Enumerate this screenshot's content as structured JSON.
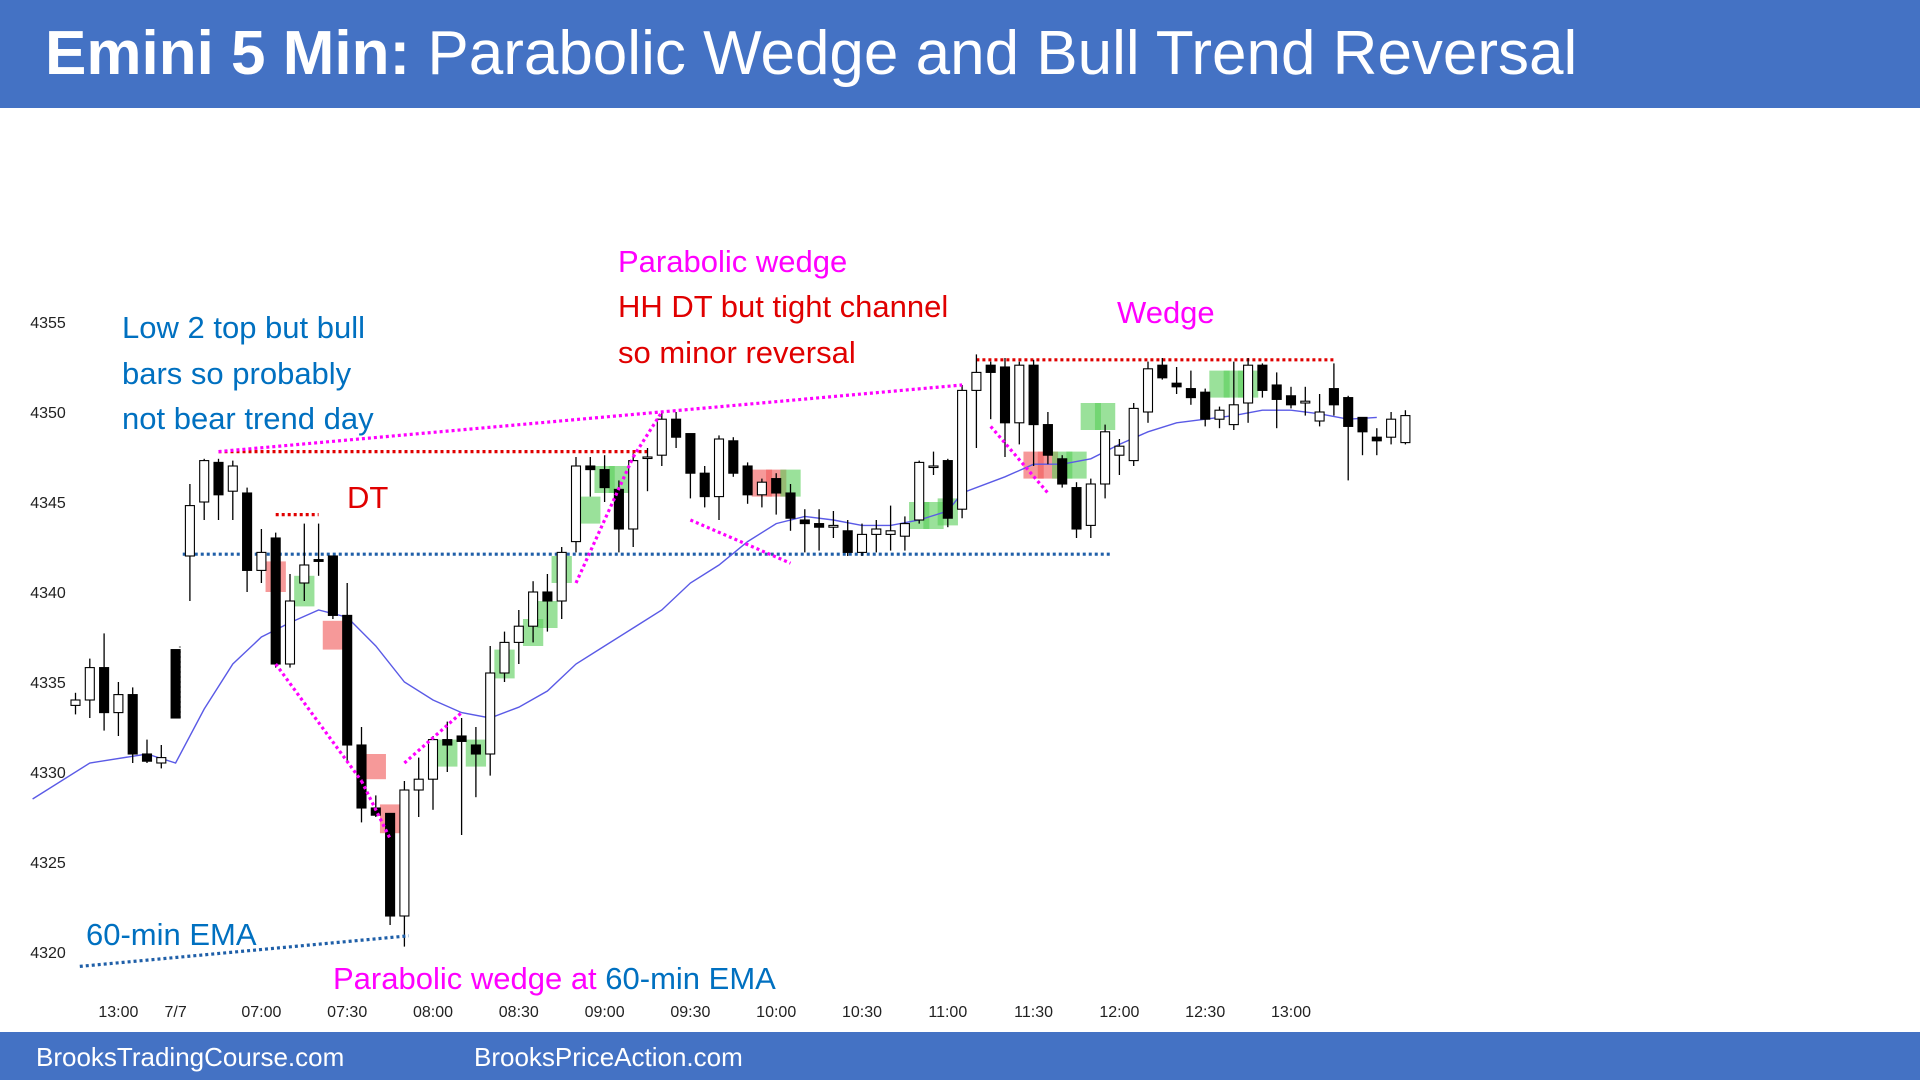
{
  "title": {
    "bold": "Emini 5 Min:",
    "rest": " Parabolic Wedge and Bull Trend Reversal"
  },
  "footer": {
    "left": "BrooksTradingCourse.com",
    "right": "BrooksPriceAction.com"
  },
  "colors": {
    "banner": "#4472c4",
    "bull_body": "#ffffff",
    "bear_body": "#000000",
    "ema": "#5a5ae6",
    "magenta": "#ff00ff",
    "red": "#e00000",
    "blue_text": "#0070c0",
    "dotted_blue": "#1f5fa8",
    "green_box": "#5ccf5c",
    "red_box": "#f05a5a"
  },
  "annotations": {
    "low2": [
      "Low 2 top but bull",
      "bars so probably",
      "not bear trend day"
    ],
    "dt": "DT",
    "parabolic": [
      "Parabolic wedge",
      "HH DT but tight channel",
      "so minor reversal"
    ],
    "wedge": "Wedge",
    "ema_label": "60-min EMA",
    "bottom_prefix": "Parabolic wedge at ",
    "bottom_suffix": "60-min EMA"
  },
  "chart_data": {
    "type": "candlestick",
    "y_axis": {
      "ticks": [
        4320,
        4325,
        4330,
        4335,
        4340,
        4345,
        4350,
        4355
      ],
      "range": [
        4319,
        4356
      ]
    },
    "x_axis": {
      "tick_labels": [
        {
          "bar": 3,
          "label": "13:00"
        },
        {
          "bar": 7,
          "label": "7/7"
        },
        {
          "bar": 13,
          "label": "07:00"
        },
        {
          "bar": 19,
          "label": "07:30"
        },
        {
          "bar": 25,
          "label": "08:00"
        },
        {
          "bar": 31,
          "label": "08:30"
        },
        {
          "bar": 37,
          "label": "09:00"
        },
        {
          "bar": 43,
          "label": "09:30"
        },
        {
          "bar": 49,
          "label": "10:00"
        },
        {
          "bar": 55,
          "label": "10:30"
        },
        {
          "bar": 61,
          "label": "11:00"
        },
        {
          "bar": 67,
          "label": "11:30"
        },
        {
          "bar": 73,
          "label": "12:00"
        },
        {
          "bar": 79,
          "label": "12:30"
        },
        {
          "bar": 85,
          "label": "13:00"
        }
      ]
    },
    "bars": [
      [
        4333.7,
        4334.4,
        4333.2,
        4334.0
      ],
      [
        4334.0,
        4336.3,
        4333.0,
        4335.8
      ],
      [
        4335.8,
        4337.7,
        4332.3,
        4333.3
      ],
      [
        4333.3,
        4335.0,
        4332.0,
        4334.3
      ],
      [
        4334.3,
        4334.7,
        4330.5,
        4331.0
      ],
      [
        4331.0,
        4331.8,
        4330.5,
        4330.6
      ],
      [
        4330.5,
        4331.5,
        4330.2,
        4330.8
      ],
      [
        4336.8,
        4336.8,
        4333.0,
        4333.0
      ],
      [
        4342.0,
        4346.0,
        4339.5,
        4344.8
      ],
      [
        4345.0,
        4347.4,
        4344.0,
        4347.3
      ],
      [
        4347.2,
        4347.4,
        4344.0,
        4345.4
      ],
      [
        4345.6,
        4347.3,
        4344.0,
        4347.0
      ],
      [
        4345.5,
        4345.8,
        4340.0,
        4341.2
      ],
      [
        4341.2,
        4343.5,
        4340.5,
        4342.2
      ],
      [
        4343.0,
        4343.3,
        4335.8,
        4336.0
      ],
      [
        4336.0,
        4341.0,
        4335.8,
        4339.5
      ],
      [
        4340.5,
        4343.8,
        4339.5,
        4341.5
      ],
      [
        4341.8,
        4343.8,
        4340.9,
        4341.7
      ],
      [
        4342.0,
        4342.0,
        4338.5,
        4338.7
      ],
      [
        4338.7,
        4340.5,
        4330.6,
        4331.5
      ],
      [
        4331.5,
        4332.5,
        4327.2,
        4328.0
      ],
      [
        4328.0,
        4328.7,
        4327.5,
        4327.6
      ],
      [
        4327.7,
        4327.7,
        4321.5,
        4322.0
      ],
      [
        4322.0,
        4329.5,
        4320.3,
        4329.0
      ],
      [
        4329.0,
        4330.8,
        4327.5,
        4329.6
      ],
      [
        4329.6,
        4332.0,
        4327.9,
        4331.8
      ],
      [
        4331.8,
        4332.8,
        4330.0,
        4331.5
      ],
      [
        4332.0,
        4333.0,
        4326.5,
        4331.7
      ],
      [
        4331.5,
        4332.5,
        4328.6,
        4331.0
      ],
      [
        4331.0,
        4337.0,
        4329.8,
        4335.5
      ],
      [
        4335.5,
        4337.8,
        4335.0,
        4337.2
      ],
      [
        4337.2,
        4339.0,
        4336.0,
        4338.1
      ],
      [
        4338.1,
        4340.6,
        4337.2,
        4340.0
      ],
      [
        4340.0,
        4341.0,
        4337.8,
        4339.5
      ],
      [
        4339.5,
        4342.5,
        4338.5,
        4342.2
      ],
      [
        4342.8,
        4347.5,
        4342.2,
        4347.0
      ],
      [
        4347.0,
        4347.5,
        4345.3,
        4346.8
      ],
      [
        4346.8,
        4347.6,
        4345.0,
        4345.8
      ],
      [
        4345.7,
        4346.2,
        4342.2,
        4343.5
      ],
      [
        4343.5,
        4347.7,
        4342.5,
        4347.3
      ],
      [
        4347.5,
        4348.0,
        4345.6,
        4347.5
      ],
      [
        4347.6,
        4350.0,
        4347.0,
        4349.6
      ],
      [
        4349.6,
        4350.0,
        4348.0,
        4348.6
      ],
      [
        4348.8,
        4348.8,
        4345.2,
        4346.6
      ],
      [
        4346.6,
        4347.0,
        4344.7,
        4345.3
      ],
      [
        4345.3,
        4348.7,
        4344.0,
        4348.5
      ],
      [
        4348.4,
        4348.6,
        4346.4,
        4346.6
      ],
      [
        4347.0,
        4347.2,
        4344.9,
        4345.4
      ],
      [
        4345.4,
        4346.3,
        4344.7,
        4346.1
      ],
      [
        4346.3,
        4346.6,
        4344.3,
        4345.5
      ],
      [
        4345.5,
        4346.0,
        4343.4,
        4344.1
      ],
      [
        4344.0,
        4344.6,
        4342.2,
        4343.8
      ],
      [
        4343.8,
        4344.6,
        4342.3,
        4343.6
      ],
      [
        4343.6,
        4344.5,
        4343.0,
        4343.7
      ],
      [
        4343.4,
        4344.0,
        4342.0,
        4342.2
      ],
      [
        4342.2,
        4343.8,
        4342.0,
        4343.2
      ],
      [
        4343.2,
        4344.0,
        4342.2,
        4343.5
      ],
      [
        4343.2,
        4344.8,
        4342.3,
        4343.4
      ],
      [
        4343.1,
        4344.2,
        4342.3,
        4343.8
      ],
      [
        4344.0,
        4347.3,
        4343.8,
        4347.2
      ],
      [
        4347.0,
        4347.8,
        4346.5,
        4347.0
      ],
      [
        4347.3,
        4347.4,
        4343.6,
        4344.1
      ],
      [
        4344.6,
        4351.5,
        4344.1,
        4351.2
      ],
      [
        4351.2,
        4353.2,
        4348.0,
        4352.2
      ],
      [
        4352.6,
        4352.8,
        4349.6,
        4352.2
      ],
      [
        4352.5,
        4353.0,
        4347.5,
        4349.4
      ],
      [
        4349.4,
        4352.8,
        4348.2,
        4352.6
      ],
      [
        4352.6,
        4352.9,
        4347.0,
        4349.3
      ],
      [
        4349.3,
        4350.0,
        4347.1,
        4347.6
      ],
      [
        4347.4,
        4347.6,
        4345.8,
        4346.0
      ],
      [
        4345.8,
        4346.1,
        4343.0,
        4343.5
      ],
      [
        4343.7,
        4346.3,
        4343.0,
        4346.0
      ],
      [
        4346.0,
        4349.3,
        4345.2,
        4348.9
      ],
      [
        4347.6,
        4348.5,
        4346.5,
        4348.1
      ],
      [
        4347.3,
        4350.5,
        4347.0,
        4350.2
      ],
      [
        4350.0,
        4352.8,
        4349.4,
        4352.4
      ],
      [
        4352.6,
        4353.0,
        4351.8,
        4351.9
      ],
      [
        4351.6,
        4352.5,
        4351.0,
        4351.4
      ],
      [
        4351.3,
        4352.3,
        4350.4,
        4350.8
      ],
      [
        4351.1,
        4351.3,
        4349.2,
        4349.6
      ],
      [
        4349.6,
        4350.3,
        4349.1,
        4350.1
      ],
      [
        4349.3,
        4352.8,
        4349.0,
        4350.4
      ],
      [
        4350.5,
        4353.0,
        4349.4,
        4352.6
      ],
      [
        4352.6,
        4352.7,
        4350.8,
        4351.2
      ],
      [
        4351.5,
        4352.2,
        4349.1,
        4350.7
      ],
      [
        4350.9,
        4351.4,
        4350.2,
        4350.4
      ],
      [
        4350.5,
        4351.4,
        4349.8,
        4350.6
      ],
      [
        4349.5,
        4351.0,
        4349.2,
        4350.0
      ],
      [
        4351.3,
        4352.7,
        4349.8,
        4350.4
      ],
      [
        4350.8,
        4350.9,
        4346.2,
        4349.2
      ],
      [
        4349.7,
        4349.7,
        4347.6,
        4348.9
      ],
      [
        4348.6,
        4349.1,
        4347.6,
        4348.4
      ],
      [
        4348.6,
        4350.0,
        4348.2,
        4349.6
      ],
      [
        4348.3,
        4350.1,
        4348.2,
        4349.8
      ]
    ],
    "ema": [
      [
        -3,
        4328.5
      ],
      [
        1,
        4330.5
      ],
      [
        5,
        4331.0
      ],
      [
        7,
        4330.5
      ],
      [
        9,
        4333.5
      ],
      [
        11,
        4336.0
      ],
      [
        13,
        4337.5
      ],
      [
        15,
        4338.3
      ],
      [
        17,
        4339.0
      ],
      [
        19,
        4338.6
      ],
      [
        21,
        4337.0
      ],
      [
        23,
        4335.0
      ],
      [
        25,
        4334.0
      ],
      [
        27,
        4333.3
      ],
      [
        29,
        4333.0
      ],
      [
        31,
        4333.6
      ],
      [
        33,
        4334.5
      ],
      [
        35,
        4336.0
      ],
      [
        37,
        4337.0
      ],
      [
        39,
        4338.0
      ],
      [
        41,
        4339.0
      ],
      [
        43,
        4340.5
      ],
      [
        45,
        4341.5
      ],
      [
        47,
        4342.8
      ],
      [
        49,
        4343.8
      ],
      [
        51,
        4344.2
      ],
      [
        53,
        4344.0
      ],
      [
        55,
        4343.7
      ],
      [
        57,
        4343.7
      ],
      [
        59,
        4344.0
      ],
      [
        61,
        4344.5
      ],
      [
        62,
        4345.5
      ],
      [
        65,
        4346.4
      ],
      [
        67,
        4347.1
      ],
      [
        69,
        4347.1
      ],
      [
        71,
        4347.4
      ],
      [
        73,
        4348.2
      ],
      [
        75,
        4348.9
      ],
      [
        77,
        4349.4
      ],
      [
        79,
        4349.6
      ],
      [
        81,
        4349.8
      ],
      [
        83,
        4350.1
      ],
      [
        85,
        4350.1
      ],
      [
        87,
        4349.9
      ],
      [
        89,
        4349.6
      ],
      [
        91,
        4349.7
      ]
    ],
    "levels": [
      {
        "y": 4342.1,
        "x1": 7.5,
        "x2": 72.5,
        "style": "blue-dotted"
      },
      {
        "y": 4347.8,
        "x1": 10,
        "x2": 40,
        "style": "red-dotted"
      },
      {
        "y": 4344.3,
        "x1": 14,
        "x2": 17,
        "style": "red-dotted"
      },
      {
        "y": 4352.9,
        "x1": 63,
        "x2": 88,
        "style": "red-dotted"
      }
    ]
  }
}
